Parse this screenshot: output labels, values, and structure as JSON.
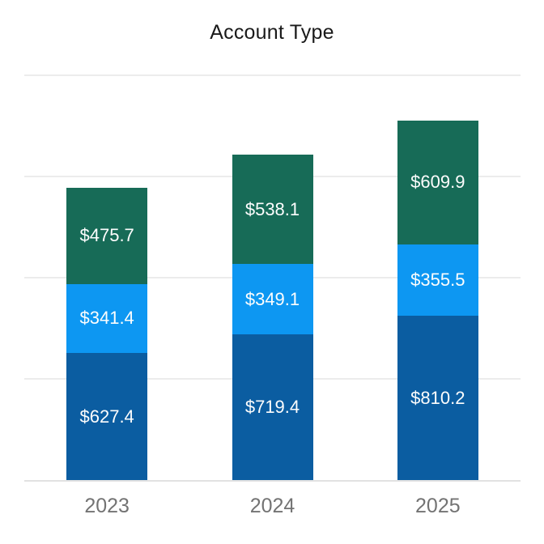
{
  "chart_data": {
    "type": "bar",
    "stacked": true,
    "title": "Account Type",
    "categories": [
      "2023",
      "2024",
      "2025"
    ],
    "series": [
      {
        "color": "#0b5da1",
        "values": [
          627.4,
          719.4,
          810.2
        ],
        "labels": [
          "$627.4",
          "$719.4",
          "$810.2"
        ]
      },
      {
        "color": "#0d97f2",
        "values": [
          341.4,
          349.1,
          355.5
        ],
        "labels": [
          "$341.4",
          "$349.1",
          "$355.5"
        ]
      },
      {
        "color": "#176b57",
        "values": [
          475.7,
          538.1,
          609.9
        ],
        "labels": [
          "$475.7",
          "$538.1",
          "$609.9"
        ]
      }
    ],
    "value_prefix": "$",
    "xlabel": "",
    "ylabel": "",
    "ylim": [
      0,
      2000
    ],
    "grid_step": 500,
    "grid": true,
    "legend": false,
    "y_tick_labels_visible": false
  },
  "colors": {
    "background": "#ffffff",
    "gridline": "#ececec",
    "baseline": "#e2e2e2",
    "title_text": "#1a1a1a",
    "axis_label_text": "#737373",
    "bar_label_text": "#fdfdfd"
  }
}
